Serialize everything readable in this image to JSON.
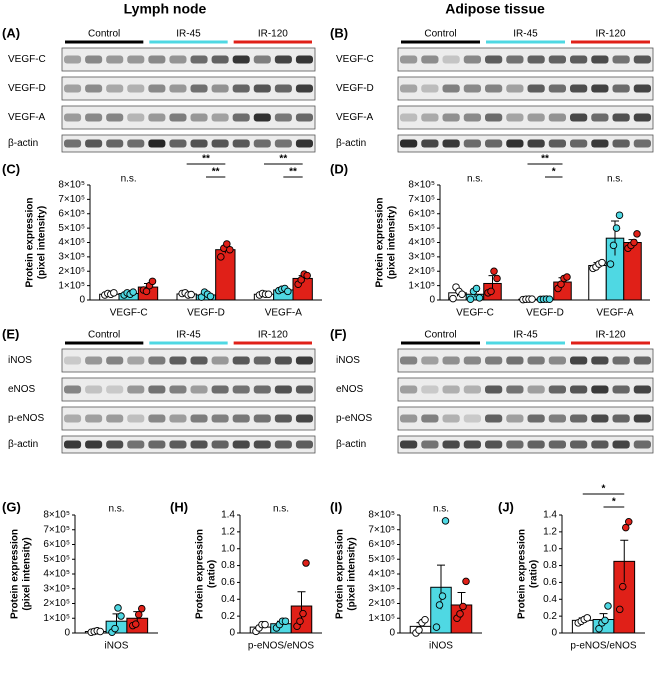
{
  "columns": [
    "Lymph node",
    "Adipose tissue"
  ],
  "group_colors": [
    "#000000",
    "#4fd8e3",
    "#e02018"
  ],
  "blots": [
    {
      "panel": "(A)",
      "groups": [
        "Control",
        "IR-45",
        "IR-120"
      ],
      "rows": [
        "VEGF-C",
        "VEGF-D",
        "VEGF-A",
        "β-actin"
      ]
    },
    {
      "panel": "(B)",
      "groups": [
        "Control",
        "IR-45",
        "IR-120"
      ],
      "rows": [
        "VEGF-C",
        "VEGF-D",
        "VEGF-A",
        "β-actin"
      ]
    },
    {
      "panel": "(E)",
      "groups": [
        "Control",
        "IR-45",
        "IR-120"
      ],
      "rows": [
        "iNOS",
        "eNOS",
        "p-eNOS",
        "β-actin"
      ]
    },
    {
      "panel": "(F)",
      "groups": [
        "Control",
        "IR-45",
        "IR-120"
      ],
      "rows": [
        "iNOS",
        "eNOS",
        "p-eNOS",
        "β-actin"
      ]
    }
  ],
  "chart_data": [
    {
      "type": "bar",
      "panel": "(C)",
      "ylabel": [
        "Protein expression",
        "(pixel intensity)"
      ],
      "categories": [
        "VEGF-C",
        "VEGF-D",
        "VEGF-A"
      ],
      "series": [
        {
          "color": "#ffffff",
          "values": [
            40000,
            42000,
            40000
          ],
          "errors": [
            8000,
            8000,
            5000
          ],
          "points": [
            [
              35000,
              45000,
              40000,
              50000
            ],
            [
              45000,
              50000,
              35000,
              38000
            ],
            [
              35000,
              45000,
              40000,
              40000
            ]
          ]
        },
        {
          "color": "#4fd8e3",
          "values": [
            45000,
            35000,
            70000
          ],
          "errors": [
            10000,
            15000,
            10000
          ],
          "points": [
            [
              35000,
              50000,
              40000,
              55000
            ],
            [
              20000,
              55000,
              40000,
              25000
            ],
            [
              65000,
              75000,
              80000,
              60000
            ]
          ]
        },
        {
          "color": "#e02018",
          "values": [
            90000,
            350000,
            150000
          ],
          "errors": [
            25000,
            25000,
            20000
          ],
          "points": [
            [
              70000,
              60000,
              100000,
              130000
            ],
            [
              300000,
              360000,
              390000,
              350000
            ],
            [
              110000,
              140000,
              180000,
              170000
            ]
          ]
        }
      ],
      "ylim": [
        0,
        800000
      ],
      "yticks": [
        0,
        {
          "value": 100000,
          "label": "1×10⁵"
        },
        {
          "value": 200000,
          "label": "2×10⁵"
        },
        {
          "value": 300000,
          "label": "3×10⁵"
        },
        {
          "value": 400000,
          "label": "4×10⁵"
        },
        {
          "value": 500000,
          "label": "5×10⁵"
        },
        {
          "value": 600000,
          "label": "6×10⁵"
        },
        {
          "value": 700000,
          "label": "7×10⁵"
        },
        {
          "value": 800000,
          "label": "8×10⁵"
        }
      ],
      "annotations": [
        {
          "label": "n.s.",
          "category": 0
        }
      ],
      "brackets": [
        {
          "label": "**",
          "category": 1,
          "between": [
            0,
            2
          ]
        },
        {
          "label": "**",
          "category": 1,
          "between": [
            1,
            2
          ]
        },
        {
          "label": "**",
          "category": 2,
          "between": [
            0,
            2
          ]
        },
        {
          "label": "**",
          "category": 2,
          "between": [
            1,
            2
          ]
        }
      ]
    },
    {
      "type": "bar",
      "panel": "(D)",
      "ylabel": [
        "Protein expression",
        "(pixel intensity)"
      ],
      "categories": [
        "VEGF-C",
        "VEGF-D",
        "VEGF-A"
      ],
      "series": [
        {
          "color": "#ffffff",
          "values": [
            50000,
            5000,
            240000
          ],
          "errors": [
            25000,
            2000,
            20000
          ],
          "points": [
            [
              10000,
              90000,
              60000,
              40000
            ],
            [
              3000,
              5000,
              6000,
              6000
            ],
            [
              220000,
              230000,
              250000,
              260000
            ]
          ]
        },
        {
          "color": "#4fd8e3",
          "values": [
            40000,
            5000,
            430000
          ],
          "errors": [
            20000,
            2000,
            120000
          ],
          "points": [
            [
              5000,
              60000,
              80000,
              15000
            ],
            [
              4000,
              5000,
              6000,
              5000
            ],
            [
              250000,
              380000,
              500000,
              590000
            ]
          ]
        },
        {
          "color": "#e02018",
          "values": [
            115000,
            125000,
            400000
          ],
          "errors": [
            55000,
            30000,
            20000
          ],
          "points": [
            [
              50000,
              60000,
              200000,
              150000
            ],
            [
              80000,
              110000,
              150000,
              160000
            ],
            [
              360000,
              380000,
              400000,
              460000
            ]
          ]
        }
      ],
      "ylim": [
        0,
        800000
      ],
      "yticks": [
        0,
        {
          "value": 100000,
          "label": "1×10⁵"
        },
        {
          "value": 200000,
          "label": "2×10⁵"
        },
        {
          "value": 300000,
          "label": "3×10⁵"
        },
        {
          "value": 400000,
          "label": "4×10⁵"
        },
        {
          "value": 500000,
          "label": "5×10⁵"
        },
        {
          "value": 600000,
          "label": "6×10⁵"
        },
        {
          "value": 700000,
          "label": "7×10⁵"
        },
        {
          "value": 800000,
          "label": "8×10⁵"
        }
      ],
      "annotations": [
        {
          "label": "n.s.",
          "category": 0
        },
        {
          "label": "n.s.",
          "category": 2
        }
      ],
      "brackets": [
        {
          "label": "**",
          "category": 1,
          "between": [
            0,
            2
          ]
        },
        {
          "label": "*",
          "category": 1,
          "between": [
            1,
            2
          ]
        }
      ]
    },
    {
      "type": "bar",
      "panel": "(G)",
      "ylabel": [
        "Protein expression",
        "(pixel intensity)"
      ],
      "categories": [
        "iNOS"
      ],
      "series": [
        {
          "color": "#ffffff",
          "values": [
            10000
          ],
          "errors": [
            5000
          ],
          "points": [
            [
              5000,
              10000,
              15000,
              10000
            ]
          ]
        },
        {
          "color": "#4fd8e3",
          "values": [
            80000
          ],
          "errors": [
            50000
          ],
          "points": [
            [
              5000,
              30000,
              170000,
              115000
            ]
          ]
        },
        {
          "color": "#e02018",
          "values": [
            100000
          ],
          "errors": [
            45000
          ],
          "points": [
            [
              50000,
              60000,
              125000,
              165000
            ]
          ]
        }
      ],
      "ylim": [
        0,
        800000
      ],
      "yticks": [
        0,
        {
          "value": 100000,
          "label": "1×10⁵"
        },
        {
          "value": 200000,
          "label": "2×10⁵"
        },
        {
          "value": 300000,
          "label": "3×10⁵"
        },
        {
          "value": 400000,
          "label": "4×10⁵"
        },
        {
          "value": 500000,
          "label": "5×10⁵"
        },
        {
          "value": 600000,
          "label": "6×10⁵"
        },
        {
          "value": 700000,
          "label": "7×10⁵"
        },
        {
          "value": 800000,
          "label": "8×10⁵"
        }
      ],
      "annotations": [
        {
          "label": "n.s.",
          "category": 0
        }
      ],
      "brackets": []
    },
    {
      "type": "bar",
      "panel": "(H)",
      "ylabel": [
        "Protein expression",
        "(ratio)"
      ],
      "categories": [
        "p-eNOS/eNOS"
      ],
      "series": [
        {
          "color": "#ffffff",
          "values": [
            0.07
          ],
          "errors": [
            0.02
          ],
          "points": [
            [
              0.02,
              0.06,
              0.1,
              0.1
            ]
          ]
        },
        {
          "color": "#4fd8e3",
          "values": [
            0.11
          ],
          "errors": [
            0.03
          ],
          "points": [
            [
              0.06,
              0.1,
              0.14,
              0.14
            ]
          ]
        },
        {
          "color": "#e02018",
          "values": [
            0.32
          ],
          "errors": [
            0.17
          ],
          "points": [
            [
              0.08,
              0.14,
              0.23,
              0.83
            ]
          ]
        }
      ],
      "ylim": [
        0,
        1.4
      ],
      "yticks": [
        0,
        0.2,
        0.4,
        0.6,
        0.8,
        {
          "value": 1,
          "label": "1.0"
        },
        1.2,
        1.4
      ],
      "annotations": [
        {
          "label": "n.s.",
          "category": 0
        }
      ],
      "brackets": []
    },
    {
      "type": "bar",
      "panel": "(I)",
      "ylabel": [
        "Protein expression",
        "(pixel intensity)"
      ],
      "categories": [
        "iNOS"
      ],
      "series": [
        {
          "color": "#ffffff",
          "values": [
            45000
          ],
          "errors": [
            25000
          ],
          "points": [
            [
              0,
              20000,
              70000,
              90000
            ]
          ]
        },
        {
          "color": "#4fd8e3",
          "values": [
            310000
          ],
          "errors": [
            150000
          ],
          "points": [
            [
              40000,
              190000,
              250000,
              760000
            ]
          ]
        },
        {
          "color": "#e02018",
          "values": [
            190000
          ],
          "errors": [
            85000
          ],
          "points": [
            [
              100000,
              130000,
              180000,
              350000
            ]
          ]
        }
      ],
      "ylim": [
        0,
        800000
      ],
      "yticks": [
        0,
        {
          "value": 100000,
          "label": "1×10⁵"
        },
        {
          "value": 200000,
          "label": "2×10⁵"
        },
        {
          "value": 300000,
          "label": "3×10⁵"
        },
        {
          "value": 400000,
          "label": "4×10⁵"
        },
        {
          "value": 500000,
          "label": "5×10⁵"
        },
        {
          "value": 600000,
          "label": "6×10⁵"
        },
        {
          "value": 700000,
          "label": "7×10⁵"
        },
        {
          "value": 800000,
          "label": "8×10⁵"
        }
      ],
      "annotations": [
        {
          "label": "n.s.",
          "category": 0
        }
      ],
      "brackets": []
    },
    {
      "type": "bar",
      "panel": "(J)",
      "ylabel": [
        "Protein expression",
        "(ratio)"
      ],
      "categories": [
        "p-eNOS/eNOS"
      ],
      "series": [
        {
          "color": "#ffffff",
          "values": [
            0.15
          ],
          "errors": [
            0.03
          ],
          "points": [
            [
              0.12,
              0.14,
              0.16,
              0.18
            ]
          ]
        },
        {
          "color": "#4fd8e3",
          "values": [
            0.16
          ],
          "errors": [
            0.07
          ],
          "points": [
            [
              0.05,
              0.12,
              0.15,
              0.32
            ]
          ]
        },
        {
          "color": "#e02018",
          "values": [
            0.85
          ],
          "errors": [
            0.25
          ],
          "points": [
            [
              0.28,
              0.55,
              1.25,
              1.32
            ]
          ]
        }
      ],
      "ylim": [
        0,
        1.4
      ],
      "yticks": [
        0,
        0.2,
        0.4,
        0.6,
        0.8,
        {
          "value": 1,
          "label": "1.0"
        },
        1.2,
        1.4
      ],
      "annotations": [],
      "brackets": [
        {
          "label": "*",
          "category": 0,
          "between": [
            0,
            2
          ]
        },
        {
          "label": "*",
          "category": 0,
          "between": [
            1,
            2
          ]
        }
      ]
    }
  ]
}
